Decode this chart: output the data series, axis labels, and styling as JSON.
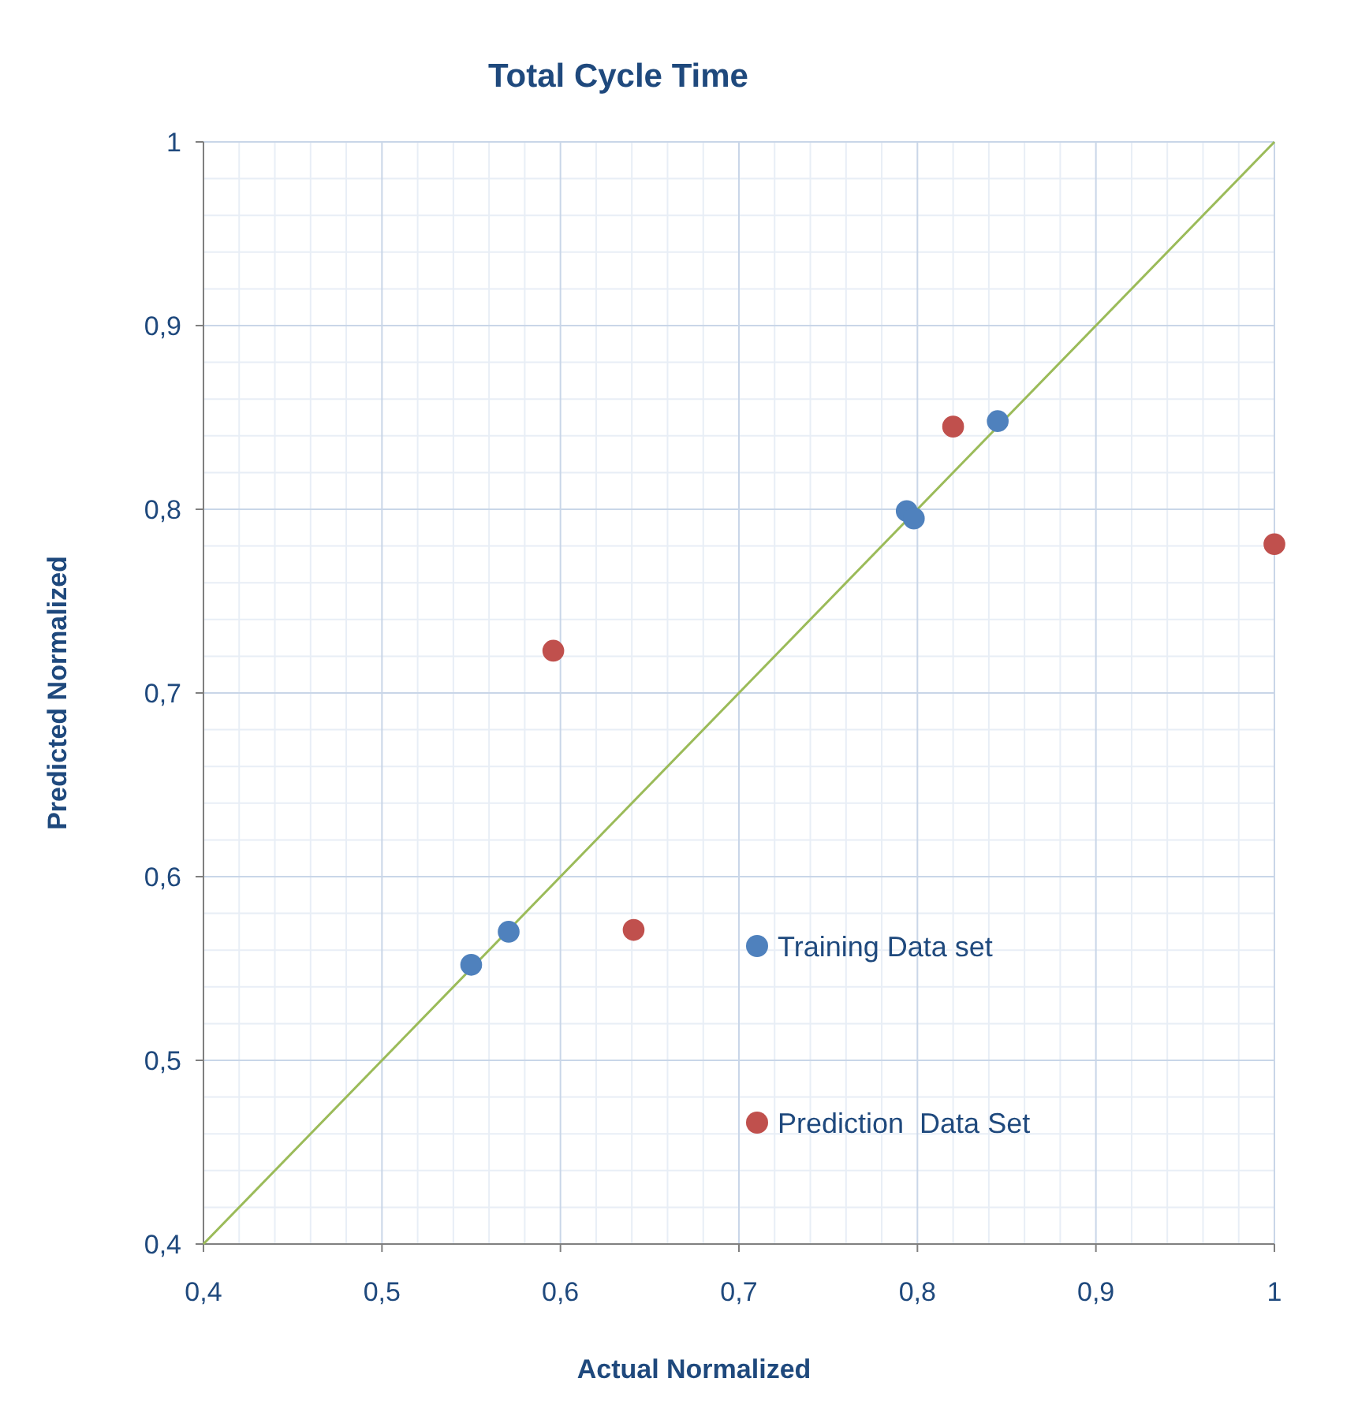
{
  "chart_data": {
    "type": "scatter",
    "title": "Total Cycle Time",
    "xlabel": "Actual Normalized",
    "ylabel": "Predicted Normalized",
    "xlim": [
      0.4,
      1
    ],
    "ylim": [
      0.4,
      1
    ],
    "xticks": [
      {
        "value": 0.4,
        "label": "0,4"
      },
      {
        "value": 0.5,
        "label": "0,5"
      },
      {
        "value": 0.6,
        "label": "0,6"
      },
      {
        "value": 0.7,
        "label": "0,7"
      },
      {
        "value": 0.8,
        "label": "0,8"
      },
      {
        "value": 0.9,
        "label": "0,9"
      },
      {
        "value": 1,
        "label": "1"
      }
    ],
    "yticks": [
      {
        "value": 0.4,
        "label": "0,4"
      },
      {
        "value": 0.5,
        "label": "0,5"
      },
      {
        "value": 0.6,
        "label": "0,6"
      },
      {
        "value": 0.7,
        "label": "0,7"
      },
      {
        "value": 0.8,
        "label": "0,8"
      },
      {
        "value": 0.9,
        "label": "0,9"
      },
      {
        "value": 1,
        "label": "1"
      }
    ],
    "grid": true,
    "legend": "bottom right",
    "marker": "circle",
    "series": [
      {
        "type": "line",
        "color": "#9bbb59",
        "x": [
          0.4,
          1
        ],
        "values": [
          0.4,
          1
        ],
        "marker": "none"
      },
      {
        "name": "Training Data set",
        "color": "#4f81bd",
        "x": [
          0.55,
          0.571,
          0.794,
          0.798,
          0.845
        ],
        "values": [
          0.552,
          0.57,
          0.799,
          0.795,
          0.848
        ]
      },
      {
        "name": "Prediction  Data Set",
        "color": "#c0504d",
        "x": [
          0.596,
          0.641,
          0.82,
          1.0
        ],
        "values": [
          0.723,
          0.571,
          0.845,
          0.781
        ]
      }
    ]
  }
}
